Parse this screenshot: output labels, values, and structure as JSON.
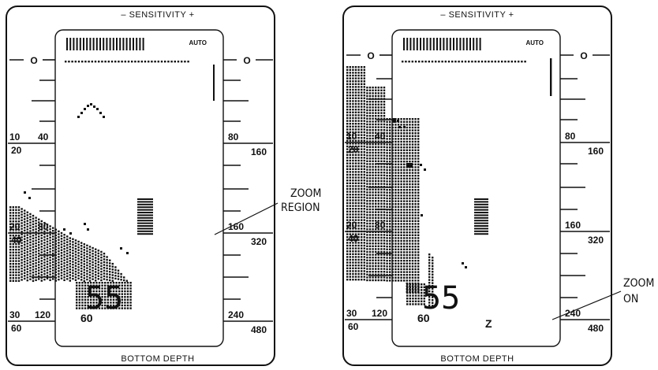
{
  "panels": [
    {
      "top_label": "–  SENSITIVITY  +",
      "mode": "AUTO",
      "bottom_label": "BOTTOM DEPTH",
      "zero_left": "O",
      "zero_right": "O",
      "left_scale": [
        {
          "top": "10",
          "top2": "40",
          "bottom": "20"
        },
        {
          "top": "20",
          "top2": "80",
          "bottom": "40"
        },
        {
          "top": "30",
          "top2": "120",
          "bottom": "60"
        }
      ],
      "right_scale": [
        {
          "top": "80",
          "bottom": "160"
        },
        {
          "top": "160",
          "bottom": "320"
        },
        {
          "top": "240",
          "bottom": "480"
        }
      ],
      "depth_large": "55",
      "depth_small": "60",
      "zoom_flag": ""
    },
    {
      "top_label": "–  SENSITIVITY  +",
      "mode": "AUTO",
      "bottom_label": "BOTTOM DEPTH",
      "zero_left": "O",
      "zero_right": "O",
      "left_scale": [
        {
          "top": "10",
          "top2": "40",
          "bottom": "20"
        },
        {
          "top": "20",
          "top2": "80",
          "bottom": "40"
        },
        {
          "top": "30",
          "top2": "120",
          "bottom": "60"
        }
      ],
      "right_scale": [
        {
          "top": "80",
          "bottom": "160"
        },
        {
          "top": "160",
          "bottom": "320"
        },
        {
          "top": "240",
          "bottom": "480"
        }
      ],
      "depth_large": "55",
      "depth_small": "60",
      "zoom_flag": "Z"
    }
  ],
  "callouts": {
    "zoom_region": [
      "ZOOM",
      "REGION"
    ],
    "zoom_on": [
      "ZOOM",
      "ON"
    ]
  }
}
